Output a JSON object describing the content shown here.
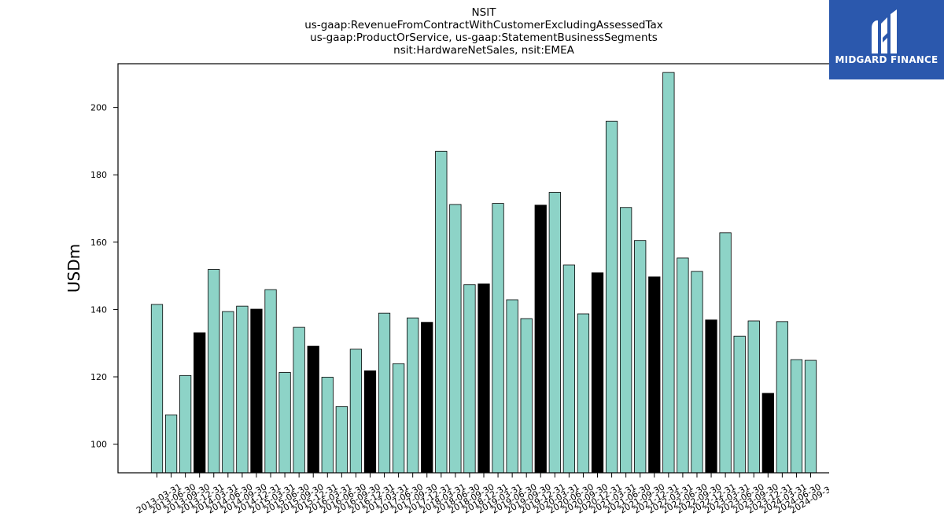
{
  "title_lines": [
    "NSIT",
    "us-gaap:RevenueFromContractWithCustomerExcludingAssessedTax",
    "us-gaap:ProductOrService, us-gaap:StatementBusinessSegments",
    "nsit:HardwareNetSales, nsit:EMEA"
  ],
  "logo": {
    "text": "MIDGARD FINANCE",
    "icon": "midgard-logo-icon",
    "bg_color": "#2b58ad"
  },
  "colors": {
    "bar_default": "#8dd3c7",
    "bar_q4": "#000000",
    "edge": "#000000"
  },
  "chart_data": {
    "type": "bar",
    "title": "NSIT us-gaap:RevenueFromContractWithCustomerExcludingAssessedTax us-gaap:ProductOrService, us-gaap:StatementBusinessSegments nsit:HardwareNetSales, nsit:EMEA",
    "xlabel": "",
    "ylabel": "USDm",
    "ylim": [
      91.5,
      213
    ],
    "yticks": [
      100,
      120,
      140,
      160,
      180,
      200
    ],
    "grid": false,
    "legend": "none",
    "categories": [
      "2013-03-31",
      "2013-06-30",
      "2013-09-30",
      "2013-12-31",
      "2014-03-31",
      "2014-06-30",
      "2014-09-30",
      "2014-12-31",
      "2015-03-31",
      "2015-06-30",
      "2015-09-30",
      "2015-12-31",
      "2016-03-31",
      "2016-06-30",
      "2016-09-30",
      "2016-12-31",
      "2017-03-31",
      "2017-06-30",
      "2017-09-30",
      "2017-12-31",
      "2018-03-31",
      "2018-06-30",
      "2018-09-30",
      "2018-12-31",
      "2019-03-31",
      "2019-06-30",
      "2019-09-30",
      "2019-12-31",
      "2020-03-31",
      "2020-06-30",
      "2020-09-30",
      "2020-12-31",
      "2021-03-31",
      "2021-06-30",
      "2021-09-30",
      "2021-12-31",
      "2022-03-31",
      "2022-06-30",
      "2022-09-30",
      "2022-12-31",
      "2023-03-31",
      "2023-06-30",
      "2023-09-30",
      "2023-12-31",
      "2024-03-31",
      "2024-06-30",
      "2024-09-30"
    ],
    "values": [
      141.5,
      108.7,
      120.4,
      133.1,
      151.9,
      139.4,
      141.0,
      140.1,
      145.9,
      121.3,
      134.7,
      129.1,
      119.9,
      111.2,
      128.2,
      121.8,
      138.9,
      123.9,
      137.5,
      136.2,
      187.0,
      171.2,
      147.4,
      147.6,
      171.5,
      142.9,
      137.3,
      171.0,
      174.8,
      153.2,
      138.7,
      150.9,
      195.9,
      170.3,
      160.5,
      149.7,
      210.4,
      155.3,
      151.3,
      136.9,
      162.8,
      132.1,
      136.6,
      115.1,
      136.4,
      125.1,
      124.9
    ],
    "highlight": [
      false,
      false,
      false,
      true,
      false,
      false,
      false,
      true,
      false,
      false,
      false,
      true,
      false,
      false,
      false,
      true,
      false,
      false,
      false,
      true,
      false,
      false,
      false,
      true,
      false,
      false,
      false,
      true,
      false,
      false,
      false,
      true,
      false,
      false,
      false,
      true,
      false,
      false,
      false,
      true,
      false,
      false,
      false,
      true,
      false,
      false,
      false
    ]
  }
}
